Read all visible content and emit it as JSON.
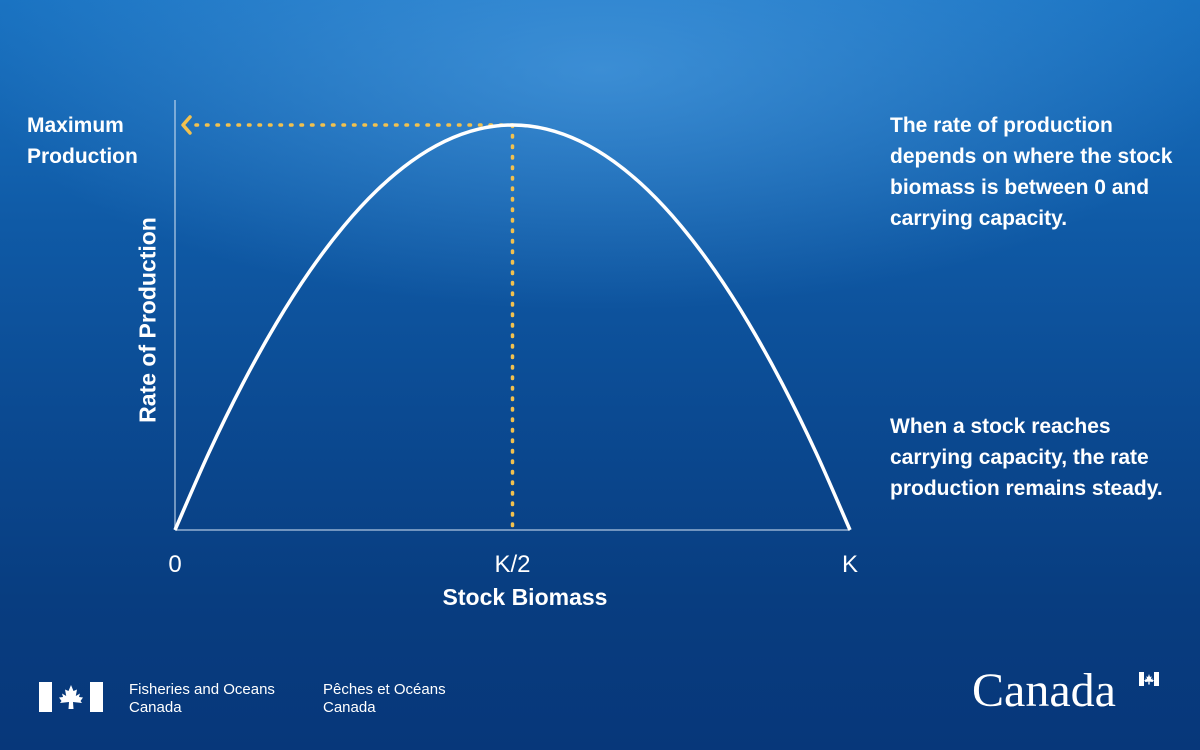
{
  "chart_data": {
    "type": "line",
    "title": "",
    "xlabel": "Stock Biomass",
    "ylabel": "Rate of Production",
    "x_ticks": [
      "0",
      "K/2",
      "K"
    ],
    "xlim": [
      0,
      1
    ],
    "ylim": [
      0,
      1
    ],
    "grid": false,
    "series": [
      {
        "x": [
          0,
          0.05,
          0.1,
          0.15,
          0.2,
          0.25,
          0.3,
          0.35,
          0.4,
          0.45,
          0.5,
          0.55,
          0.6,
          0.65,
          0.7,
          0.75,
          0.8,
          0.85,
          0.9,
          0.95,
          1.0
        ],
        "y": [
          0,
          0.19,
          0.36,
          0.51,
          0.64,
          0.75,
          0.84,
          0.91,
          0.96,
          0.99,
          1.0,
          0.99,
          0.96,
          0.91,
          0.84,
          0.75,
          0.64,
          0.51,
          0.36,
          0.19,
          0
        ]
      }
    ],
    "annotations": [
      {
        "text": "Maximum Production",
        "x": 0,
        "y": 1.0
      }
    ],
    "peak": {
      "x": 0.5,
      "y": 1.0
    }
  },
  "notes": [
    "The rate of production depends on where the stock  biomass is between 0 and carrying capacity.",
    "When a stock reaches carrying capacity, the rate production remains steady."
  ],
  "footer": {
    "dept_en_1": "Fisheries and Oceans",
    "dept_en_2": "Canada",
    "dept_fr_1": "Pêches et Océans",
    "dept_fr_2": "Canada",
    "wordmark": "Canada"
  },
  "colors": {
    "curve": "#ffffff",
    "guide": "#f2c14e",
    "axis": "#cfe0f2"
  }
}
